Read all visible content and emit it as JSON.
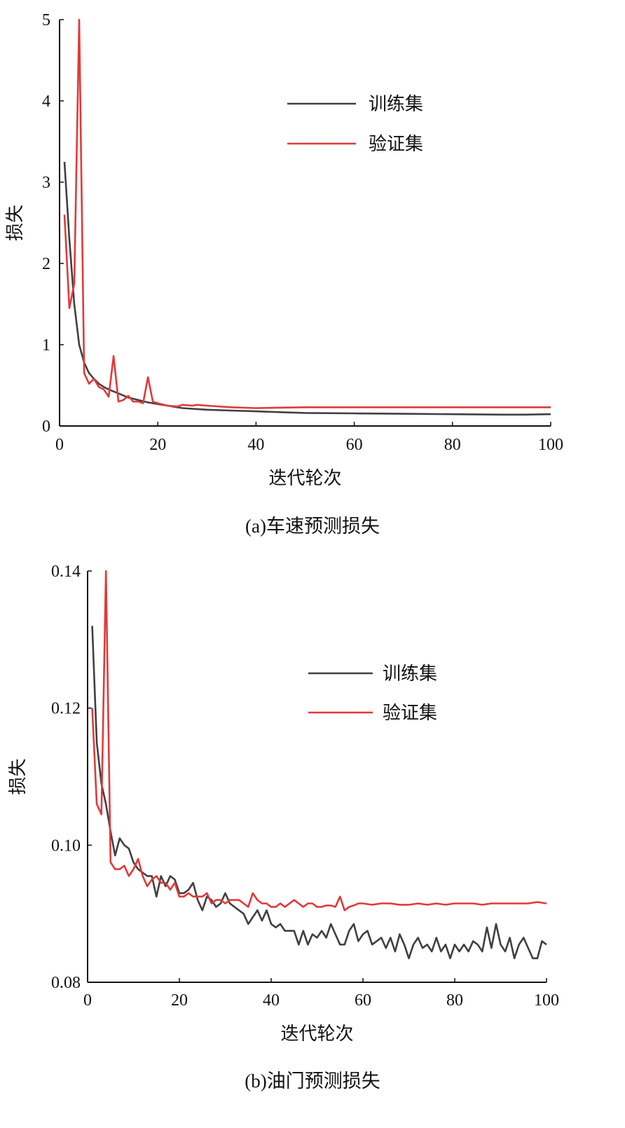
{
  "chart_data": [
    {
      "type": "line",
      "caption": "(a)车速预测损失",
      "xlabel": "迭代轮次",
      "ylabel": "损失",
      "xlim": [
        0,
        100
      ],
      "ylim": [
        0,
        5
      ],
      "xticks": [
        0,
        20,
        40,
        60,
        80,
        100
      ],
      "yticks": [
        0,
        1,
        2,
        3,
        4,
        5
      ],
      "grid": false,
      "legend_position": "top-right",
      "series": [
        {
          "name": "训练集",
          "color": "#404040",
          "x": [
            1,
            2,
            3,
            4,
            5,
            6,
            7,
            8,
            9,
            10,
            12,
            14,
            16,
            18,
            20,
            22,
            25,
            30,
            35,
            40,
            45,
            50,
            60,
            70,
            80,
            90,
            95,
            100
          ],
          "y": [
            3.25,
            2.3,
            1.5,
            1.0,
            0.78,
            0.65,
            0.58,
            0.52,
            0.48,
            0.45,
            0.4,
            0.35,
            0.32,
            0.29,
            0.27,
            0.25,
            0.22,
            0.2,
            0.19,
            0.18,
            0.17,
            0.16,
            0.155,
            0.15,
            0.145,
            0.14,
            0.14,
            0.145
          ]
        },
        {
          "name": "验证集",
          "color": "#e03a3a",
          "x": [
            1,
            2,
            3,
            4,
            5,
            6,
            7,
            8,
            9,
            10,
            11,
            12,
            13,
            14,
            15,
            16,
            17,
            18,
            19,
            20,
            22,
            24,
            25,
            27,
            28,
            30,
            35,
            40,
            50,
            60,
            70,
            80,
            90,
            100
          ],
          "y": [
            2.6,
            1.45,
            1.75,
            5.0,
            0.65,
            0.52,
            0.58,
            0.48,
            0.45,
            0.36,
            0.86,
            0.3,
            0.32,
            0.37,
            0.3,
            0.3,
            0.28,
            0.6,
            0.3,
            0.28,
            0.25,
            0.24,
            0.26,
            0.25,
            0.26,
            0.25,
            0.23,
            0.22,
            0.23,
            0.23,
            0.23,
            0.23,
            0.23,
            0.23
          ]
        }
      ]
    },
    {
      "type": "line",
      "caption": "(b)油门预测损失",
      "xlabel": "迭代轮次",
      "ylabel": "损失",
      "xlim": [
        0,
        100
      ],
      "ylim": [
        0.08,
        0.14
      ],
      "xticks": [
        0,
        20,
        40,
        60,
        80,
        100
      ],
      "yticks": [
        0.08,
        0.1,
        0.12,
        0.14
      ],
      "ytick_labels": [
        "0.08",
        "0.10",
        "0.12",
        "0.14"
      ],
      "grid": false,
      "legend_position": "top-right",
      "series": [
        {
          "name": "训练集",
          "color": "#404040",
          "x": [
            1,
            2,
            3,
            4,
            5,
            6,
            7,
            8,
            9,
            10,
            11,
            12,
            13,
            14,
            15,
            16,
            17,
            18,
            19,
            20,
            21,
            22,
            23,
            24,
            25,
            26,
            27,
            28,
            29,
            30,
            31,
            32,
            33,
            34,
            35,
            36,
            37,
            38,
            39,
            40,
            41,
            42,
            43,
            44,
            45,
            46,
            47,
            48,
            49,
            50,
            51,
            52,
            53,
            54,
            55,
            56,
            57,
            58,
            59,
            60,
            61,
            62,
            63,
            64,
            65,
            66,
            67,
            68,
            69,
            70,
            71,
            72,
            73,
            74,
            75,
            76,
            77,
            78,
            79,
            80,
            81,
            82,
            83,
            84,
            85,
            86,
            87,
            88,
            89,
            90,
            91,
            92,
            93,
            94,
            95,
            96,
            97,
            98,
            99,
            100
          ],
          "y": [
            0.132,
            0.115,
            0.109,
            0.106,
            0.102,
            0.0985,
            0.101,
            0.1,
            0.0995,
            0.0975,
            0.0965,
            0.096,
            0.0955,
            0.0955,
            0.0925,
            0.0955,
            0.094,
            0.0955,
            0.095,
            0.093,
            0.093,
            0.0935,
            0.0945,
            0.092,
            0.0905,
            0.0925,
            0.092,
            0.091,
            0.0915,
            0.093,
            0.0915,
            0.091,
            0.0905,
            0.09,
            0.0885,
            0.0895,
            0.0905,
            0.089,
            0.0905,
            0.0885,
            0.088,
            0.0885,
            0.0875,
            0.0875,
            0.0875,
            0.0855,
            0.0875,
            0.0855,
            0.087,
            0.0865,
            0.0875,
            0.0865,
            0.0885,
            0.087,
            0.0855,
            0.0855,
            0.0875,
            0.0885,
            0.086,
            0.087,
            0.0875,
            0.0855,
            0.086,
            0.0865,
            0.085,
            0.0865,
            0.0845,
            0.087,
            0.0855,
            0.0835,
            0.0855,
            0.0865,
            0.085,
            0.0855,
            0.0845,
            0.0865,
            0.0845,
            0.0855,
            0.0835,
            0.0855,
            0.0845,
            0.0855,
            0.0845,
            0.086,
            0.0855,
            0.0845,
            0.088,
            0.085,
            0.0885,
            0.0855,
            0.0845,
            0.0865,
            0.0835,
            0.0855,
            0.0865,
            0.085,
            0.0835,
            0.0835,
            0.086,
            0.0855
          ]
        },
        {
          "name": "验证集",
          "color": "#e03a3a",
          "x": [
            1,
            2,
            3,
            4,
            5,
            6,
            7,
            8,
            9,
            10,
            11,
            12,
            13,
            14,
            15,
            16,
            17,
            18,
            19,
            20,
            21,
            22,
            23,
            24,
            25,
            26,
            27,
            28,
            29,
            30,
            31,
            32,
            33,
            34,
            35,
            36,
            37,
            38,
            39,
            40,
            41,
            42,
            43,
            44,
            45,
            46,
            47,
            48,
            49,
            50,
            51,
            52,
            53,
            54,
            55,
            56,
            57,
            58,
            59,
            60,
            62,
            64,
            66,
            68,
            70,
            72,
            74,
            76,
            78,
            80,
            82,
            84,
            86,
            88,
            90,
            92,
            94,
            96,
            98,
            100
          ],
          "y": [
            0.12,
            0.106,
            0.1045,
            0.14,
            0.0975,
            0.0965,
            0.0965,
            0.097,
            0.0955,
            0.0965,
            0.098,
            0.0955,
            0.094,
            0.095,
            0.0955,
            0.0945,
            0.0945,
            0.0935,
            0.0945,
            0.0925,
            0.0925,
            0.093,
            0.0925,
            0.0925,
            0.0925,
            0.093,
            0.0915,
            0.092,
            0.092,
            0.0915,
            0.092,
            0.092,
            0.092,
            0.0915,
            0.091,
            0.093,
            0.092,
            0.0915,
            0.0915,
            0.091,
            0.091,
            0.0915,
            0.091,
            0.0915,
            0.092,
            0.0915,
            0.091,
            0.0915,
            0.0915,
            0.091,
            0.091,
            0.0912,
            0.0912,
            0.091,
            0.0925,
            0.0905,
            0.091,
            0.0912,
            0.0915,
            0.0915,
            0.0913,
            0.0915,
            0.0915,
            0.0913,
            0.0913,
            0.0915,
            0.0913,
            0.0915,
            0.0913,
            0.0915,
            0.0915,
            0.0915,
            0.0913,
            0.0915,
            0.0915,
            0.0915,
            0.0915,
            0.0915,
            0.0917,
            0.0915
          ]
        }
      ]
    }
  ]
}
